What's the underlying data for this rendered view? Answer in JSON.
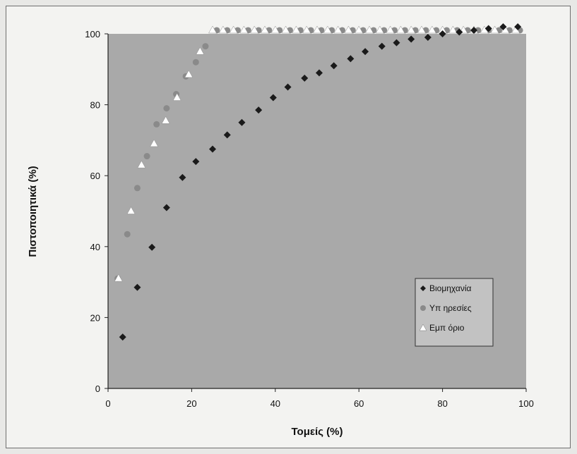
{
  "chart_data": {
    "type": "scatter",
    "xlabel": "Τομείς (%)",
    "ylabel": "Πιστοποιητικά (%)",
    "xlim": [
      0,
      100
    ],
    "ylim": [
      0,
      100
    ],
    "xticks": [
      0,
      20,
      40,
      60,
      80,
      100
    ],
    "yticks": [
      0,
      20,
      40,
      60,
      80,
      100
    ],
    "legend_position": "bottom-right",
    "plot_background": "#a9a9a9",
    "series": [
      {
        "name": "Βιομηχανία",
        "marker": "diamond",
        "color": "#1a1a1a",
        "points": [
          [
            3.5,
            14.5
          ],
          [
            7,
            28.5
          ],
          [
            10.5,
            39.8
          ],
          [
            14,
            51
          ],
          [
            17.8,
            59.5
          ],
          [
            21,
            64
          ],
          [
            25,
            67.5
          ],
          [
            28.5,
            71.5
          ],
          [
            32,
            75
          ],
          [
            36,
            78.5
          ],
          [
            39.5,
            82
          ],
          [
            43,
            85
          ],
          [
            47,
            87.5
          ],
          [
            50.5,
            89
          ],
          [
            54,
            91
          ],
          [
            58,
            93
          ],
          [
            61.5,
            95
          ],
          [
            65.5,
            96.5
          ],
          [
            69,
            97.5
          ],
          [
            72.5,
            98.5
          ],
          [
            76.5,
            99
          ],
          [
            80,
            100
          ],
          [
            84,
            100.5
          ],
          [
            87.5,
            101
          ],
          [
            91,
            101.5
          ],
          [
            94.5,
            102
          ],
          [
            98,
            102
          ]
        ]
      },
      {
        "name": "Υπ ηρεσίες",
        "marker": "circle",
        "color": "#8a8a8a",
        "points": [
          [
            2.3,
            31
          ],
          [
            4.6,
            43.5
          ],
          [
            7,
            56.5
          ],
          [
            9.3,
            65.5
          ],
          [
            11.6,
            74.5
          ],
          [
            14,
            79
          ],
          [
            16.3,
            83
          ],
          [
            18.6,
            88
          ],
          [
            21,
            92
          ],
          [
            23.3,
            96.5
          ],
          [
            26,
            101
          ],
          [
            28.5,
            101
          ],
          [
            31,
            101
          ],
          [
            33.5,
            101
          ],
          [
            36,
            101
          ],
          [
            38.5,
            101
          ],
          [
            41,
            101
          ],
          [
            43.5,
            101
          ],
          [
            46,
            101
          ],
          [
            48.5,
            101
          ],
          [
            51,
            101
          ],
          [
            53.5,
            101
          ],
          [
            56,
            101
          ],
          [
            58.5,
            101
          ],
          [
            61,
            101
          ],
          [
            63.5,
            101
          ],
          [
            66,
            101
          ],
          [
            68.5,
            101
          ],
          [
            71,
            101
          ],
          [
            73.5,
            101
          ],
          [
            76,
            101
          ],
          [
            78.5,
            101
          ],
          [
            81,
            101
          ],
          [
            83.5,
            101
          ],
          [
            86,
            101
          ],
          [
            88.5,
            101
          ],
          [
            91,
            101
          ],
          [
            93.5,
            101
          ],
          [
            96,
            101
          ],
          [
            98.5,
            101
          ]
        ]
      },
      {
        "name": "Εμπ όριο",
        "marker": "triangle",
        "color": "#ffffff",
        "points": [
          [
            2.5,
            31
          ],
          [
            5.5,
            50
          ],
          [
            8,
            63
          ],
          [
            11,
            69
          ],
          [
            13.8,
            75.5
          ],
          [
            16.5,
            82
          ],
          [
            19.3,
            88.5
          ],
          [
            22,
            95
          ],
          [
            25,
            101
          ],
          [
            27.5,
            101
          ],
          [
            30,
            101
          ],
          [
            32.5,
            101
          ],
          [
            35,
            101
          ],
          [
            37.5,
            101
          ],
          [
            40,
            101
          ],
          [
            42.5,
            101
          ],
          [
            45,
            101
          ],
          [
            47.5,
            101
          ],
          [
            50,
            101
          ],
          [
            52.5,
            101
          ],
          [
            55,
            101
          ],
          [
            57.5,
            101
          ],
          [
            60,
            101
          ],
          [
            62.5,
            101
          ],
          [
            65,
            101
          ],
          [
            67.5,
            101
          ],
          [
            70,
            101
          ],
          [
            72.5,
            101
          ],
          [
            75,
            101
          ],
          [
            77.5,
            101
          ],
          [
            80,
            101
          ],
          [
            82.5,
            101
          ],
          [
            85,
            101
          ],
          [
            87.5,
            101
          ],
          [
            90,
            101
          ],
          [
            92.5,
            101
          ],
          [
            95,
            101
          ],
          [
            97.5,
            101
          ]
        ]
      }
    ]
  }
}
